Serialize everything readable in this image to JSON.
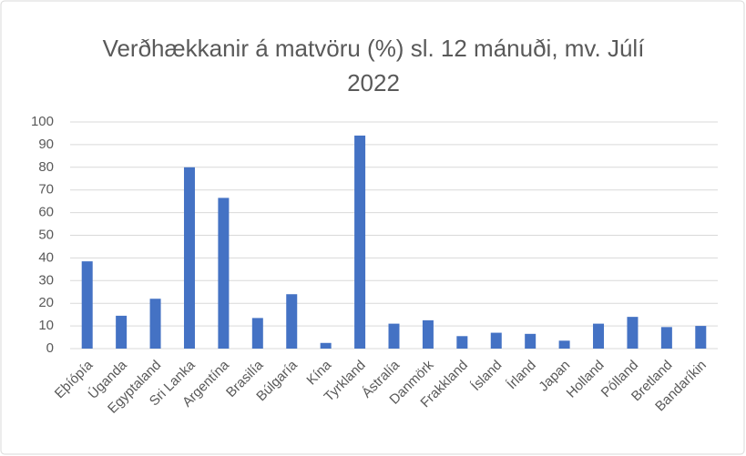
{
  "chart_data": {
    "type": "bar",
    "title": "Verðhækkanir á matvöru (%) sl. 12 mánuði, mv. Júlí 2022",
    "categories": [
      "Eþíópía",
      "Úganda",
      "Egyptaland",
      "Sri Lanka",
      "Argentína",
      "Brasilía",
      "Búlgaría",
      "Kína",
      "Tyrkland",
      "Ástralía",
      "Danmörk",
      "Frakkland",
      "Ísland",
      "Írland",
      "Japan",
      "Holland",
      "Pólland",
      "Bretland",
      "Bandaríkin"
    ],
    "values": [
      38.5,
      14.5,
      22,
      80,
      66.5,
      13.5,
      24,
      2.5,
      94,
      11,
      12.5,
      5.5,
      7,
      6.5,
      3.5,
      11,
      14,
      9.5,
      10
    ],
    "color": "#4472c4",
    "ylim": [
      0,
      100
    ],
    "yticks": [
      0,
      10,
      20,
      30,
      40,
      50,
      60,
      70,
      80,
      90,
      100
    ],
    "grid": true
  }
}
